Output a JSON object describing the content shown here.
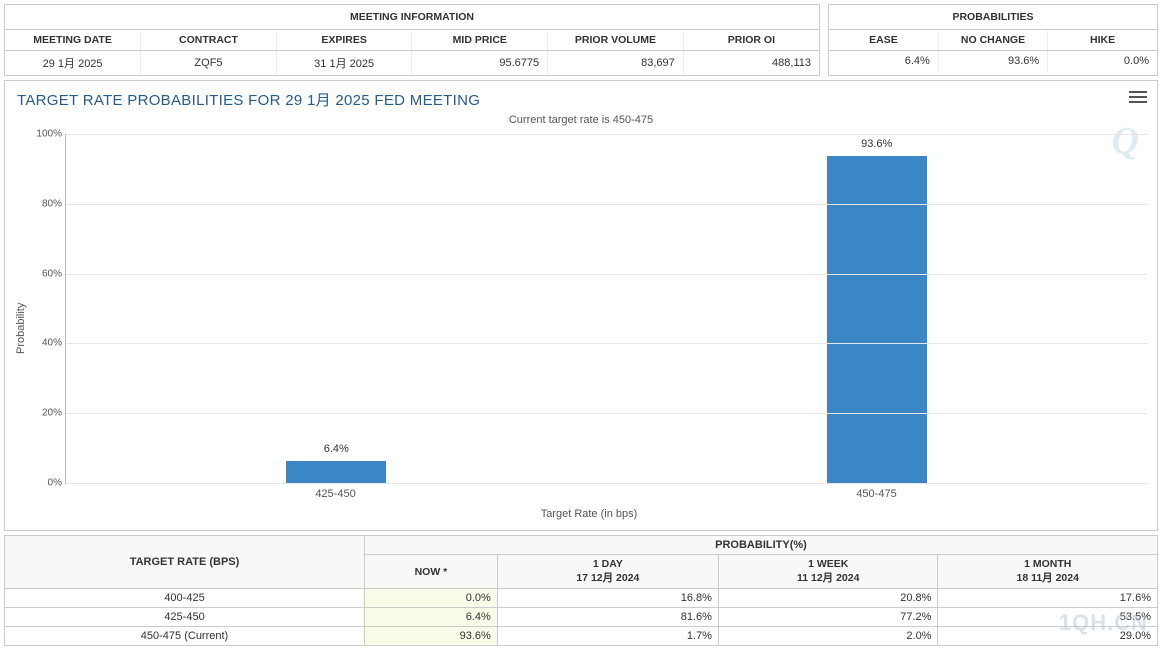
{
  "meeting_info": {
    "title": "MEETING INFORMATION",
    "headers": [
      "MEETING DATE",
      "CONTRACT",
      "EXPIRES",
      "MID PRICE",
      "PRIOR VOLUME",
      "PRIOR OI"
    ],
    "row": {
      "meeting_date": "29 1月 2025",
      "contract": "ZQF5",
      "expires": "31 1月 2025",
      "mid_price": "95.6775",
      "prior_volume": "83,697",
      "prior_oi": "488,113"
    }
  },
  "probabilities": {
    "title": "PROBABILITIES",
    "headers": [
      "EASE",
      "NO CHANGE",
      "HIKE"
    ],
    "row": {
      "ease": "6.4%",
      "no_change": "93.6%",
      "hike": "0.0%"
    }
  },
  "chart": {
    "title": "TARGET RATE PROBABILITIES FOR 29 1月 2025 FED MEETING",
    "subtitle": "Current target rate is 450-475",
    "y_label": "Probability",
    "x_label": "Target Rate (in bps)",
    "ylim": [
      0,
      100
    ],
    "ytick_step": 20,
    "bar_color": "#3b86c4",
    "grid_color": "#e6e6e6",
    "background": "#ffffff",
    "categories": [
      "425-450",
      "450-475"
    ],
    "values": [
      6.4,
      93.6
    ],
    "value_labels": [
      "6.4%",
      "93.6%"
    ],
    "title_color": "#265b8c",
    "title_fontsize": 15
  },
  "history": {
    "row_header": "TARGET RATE (BPS)",
    "group_header": "PROBABILITY(%)",
    "cols": [
      {
        "top": "NOW *",
        "sub": ""
      },
      {
        "top": "1 DAY",
        "sub": "17 12月 2024"
      },
      {
        "top": "1 WEEK",
        "sub": "11 12月 2024"
      },
      {
        "top": "1 MONTH",
        "sub": "18 11月 2024"
      }
    ],
    "rows": [
      {
        "label": "400-425",
        "vals": [
          "0.0%",
          "16.8%",
          "20.8%",
          "17.6%"
        ]
      },
      {
        "label": "425-450",
        "vals": [
          "6.4%",
          "81.6%",
          "77.2%",
          "53.5%"
        ]
      },
      {
        "label": "450-475 (Current)",
        "vals": [
          "93.6%",
          "1.7%",
          "2.0%",
          "29.0%"
        ]
      }
    ]
  },
  "watermarks": {
    "top": "Q",
    "bottom": "1QH.CN"
  }
}
